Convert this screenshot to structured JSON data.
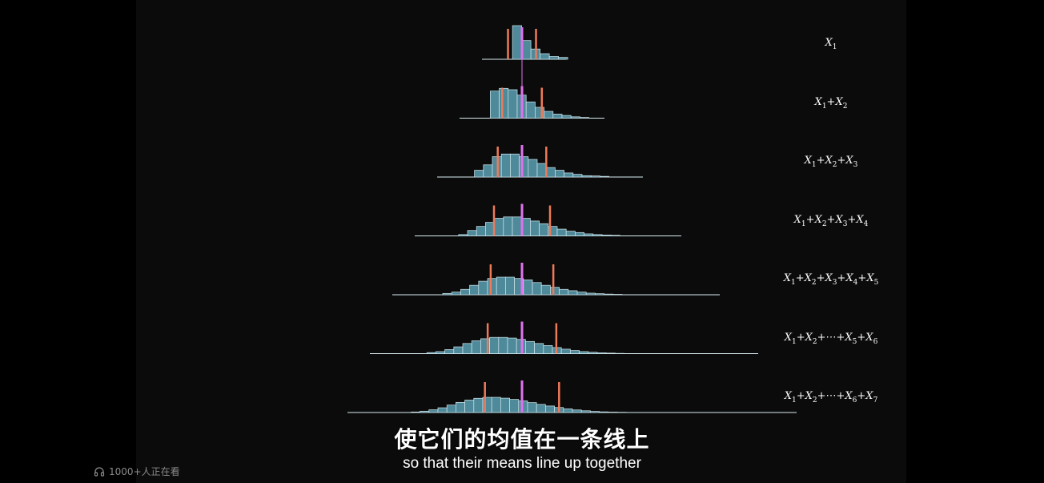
{
  "video": {
    "subtitle_zh": "使它们的均值在一条线上",
    "subtitle_en": "so that their means line up together",
    "viewers": "1000+人正在看"
  },
  "colors": {
    "bar_fill": "#4f8a9b",
    "bar_stroke": "#cfe6ec",
    "baseline": "#d9ecf2",
    "mean_line": "#e072ee",
    "sd_line": "#ef7a58"
  },
  "chart_data": {
    "type": "bar",
    "title": "",
    "mean": 0,
    "rows": [
      {
        "n": 1,
        "label": [
          "X",
          "1"
        ],
        "sd": 1,
        "values": [
          0.36,
          0.2,
          0.11,
          0.06,
          0.03,
          0.02
        ]
      },
      {
        "n": 2,
        "label": [
          "X",
          "1",
          "+",
          "X",
          "2"
        ],
        "sd": 1.414,
        "values": [
          0.2,
          0.22,
          0.21,
          0.17,
          0.12,
          0.08,
          0.05,
          0.03,
          0.02,
          0.01,
          0.005
        ]
      },
      {
        "n": 3,
        "label": [
          "X",
          "1",
          "+",
          "X",
          "2",
          "+",
          "X",
          "3"
        ],
        "sd": 1.732,
        "values": [
          0.05,
          0.09,
          0.15,
          0.17,
          0.17,
          0.15,
          0.13,
          0.1,
          0.07,
          0.05,
          0.03,
          0.02,
          0.01,
          0.008,
          0.005
        ]
      },
      {
        "n": 4,
        "label": [
          "X",
          "1",
          "+",
          "X",
          "2",
          "+",
          "X",
          "3",
          "+",
          "X",
          "4"
        ],
        "sd": 2,
        "values": [
          0.01,
          0.04,
          0.07,
          0.1,
          0.13,
          0.14,
          0.14,
          0.13,
          0.11,
          0.09,
          0.07,
          0.05,
          0.035,
          0.025,
          0.015,
          0.01,
          0.006,
          0.004
        ]
      },
      {
        "n": 5,
        "label": [
          "X",
          "1",
          "+",
          "X",
          "2",
          "+",
          "X",
          "3",
          "+",
          "X",
          "4",
          "+",
          "X",
          "5"
        ],
        "sd": 2.236,
        "values": [
          0.01,
          0.02,
          0.04,
          0.07,
          0.1,
          0.12,
          0.13,
          0.13,
          0.12,
          0.11,
          0.09,
          0.07,
          0.055,
          0.04,
          0.03,
          0.02,
          0.012,
          0.008,
          0.005,
          0.003
        ]
      },
      {
        "n": 6,
        "label": [
          "X",
          "1",
          "+",
          "X",
          "2",
          "+⋯+",
          "X",
          "5",
          "+",
          "X",
          "6"
        ],
        "sd": 2.449,
        "values": [
          0.008,
          0.015,
          0.03,
          0.05,
          0.075,
          0.095,
          0.11,
          0.12,
          0.12,
          0.115,
          0.105,
          0.09,
          0.075,
          0.06,
          0.045,
          0.033,
          0.023,
          0.015,
          0.01,
          0.006,
          0.004,
          0.002
        ]
      },
      {
        "n": 7,
        "label": [
          "X",
          "1",
          "+",
          "X",
          "2",
          "+⋯+",
          "X",
          "6",
          "+",
          "X",
          "7"
        ],
        "sd": 2.646,
        "values": [
          0.004,
          0.01,
          0.02,
          0.035,
          0.055,
          0.075,
          0.092,
          0.105,
          0.112,
          0.112,
          0.106,
          0.097,
          0.086,
          0.073,
          0.06,
          0.048,
          0.037,
          0.027,
          0.019,
          0.013,
          0.008,
          0.005,
          0.003,
          0.002
        ]
      }
    ]
  }
}
